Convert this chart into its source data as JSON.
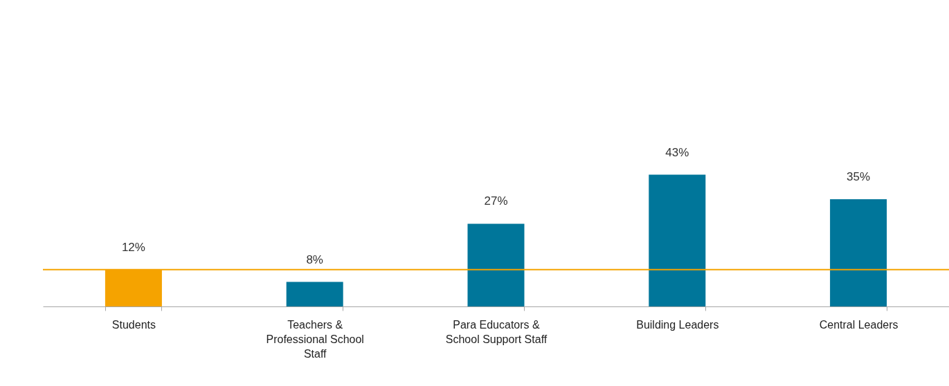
{
  "chart_data": {
    "type": "bar",
    "categories": [
      "Students",
      "Teachers & Professional School Staff",
      "Para Educators & School Support Staff",
      "Building Leaders",
      "Central Leaders"
    ],
    "values": [
      12,
      8,
      27,
      43,
      35
    ],
    "colors": [
      "#f5a300",
      "#00769a",
      "#00769a",
      "#00769a",
      "#00769a"
    ],
    "value_labels": [
      "12%",
      "8%",
      "27%",
      "43%",
      "35%"
    ],
    "ylim": [
      0,
      100
    ],
    "tick_labels": "x",
    "ref_lines": [
      {
        "axis": "y",
        "value": 12,
        "color": "#f5a300"
      }
    ]
  }
}
